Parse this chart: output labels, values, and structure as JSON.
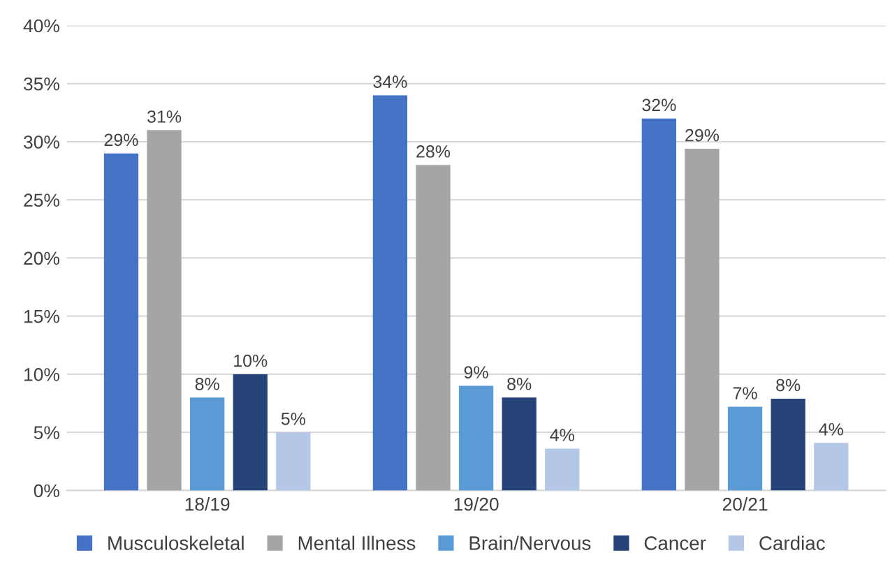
{
  "chart_data": {
    "type": "bar",
    "categories": [
      "18/19",
      "19/20",
      "20/21"
    ],
    "series": [
      {
        "name": "Musculoskeletal",
        "color": "#4472c4",
        "values": [
          29,
          34,
          32
        ],
        "value_labels": [
          "29%",
          "34%",
          "32%"
        ]
      },
      {
        "name": "Mental Illness",
        "color": "#a5a5a5",
        "values": [
          31,
          28,
          29.4
        ],
        "value_labels": [
          "31%",
          "28%",
          "29%"
        ]
      },
      {
        "name": "Brain/Nervous",
        "color": "#5b9bd5",
        "values": [
          8,
          9,
          7.2
        ],
        "value_labels": [
          "8%",
          "9%",
          "7%"
        ]
      },
      {
        "name": "Cancer",
        "color": "#264478",
        "values": [
          10,
          8,
          7.9
        ],
        "value_labels": [
          "10%",
          "8%",
          "8%"
        ]
      },
      {
        "name": "Cardiac",
        "color": "#b4c7e7",
        "values": [
          5,
          3.6,
          4.1
        ],
        "value_labels": [
          "5%",
          "4%",
          "4%"
        ]
      }
    ],
    "ylim": [
      0,
      40
    ],
    "yticks": [
      {
        "value": 0,
        "label": "0%"
      },
      {
        "value": 5,
        "label": "5%"
      },
      {
        "value": 10,
        "label": "10%"
      },
      {
        "value": 15,
        "label": "15%"
      },
      {
        "value": 20,
        "label": "20%"
      },
      {
        "value": 25,
        "label": "25%"
      },
      {
        "value": 30,
        "label": "30%"
      },
      {
        "value": 35,
        "label": "35%"
      },
      {
        "value": 40,
        "label": "40%"
      }
    ],
    "grid": "y",
    "legend": "bottom"
  }
}
